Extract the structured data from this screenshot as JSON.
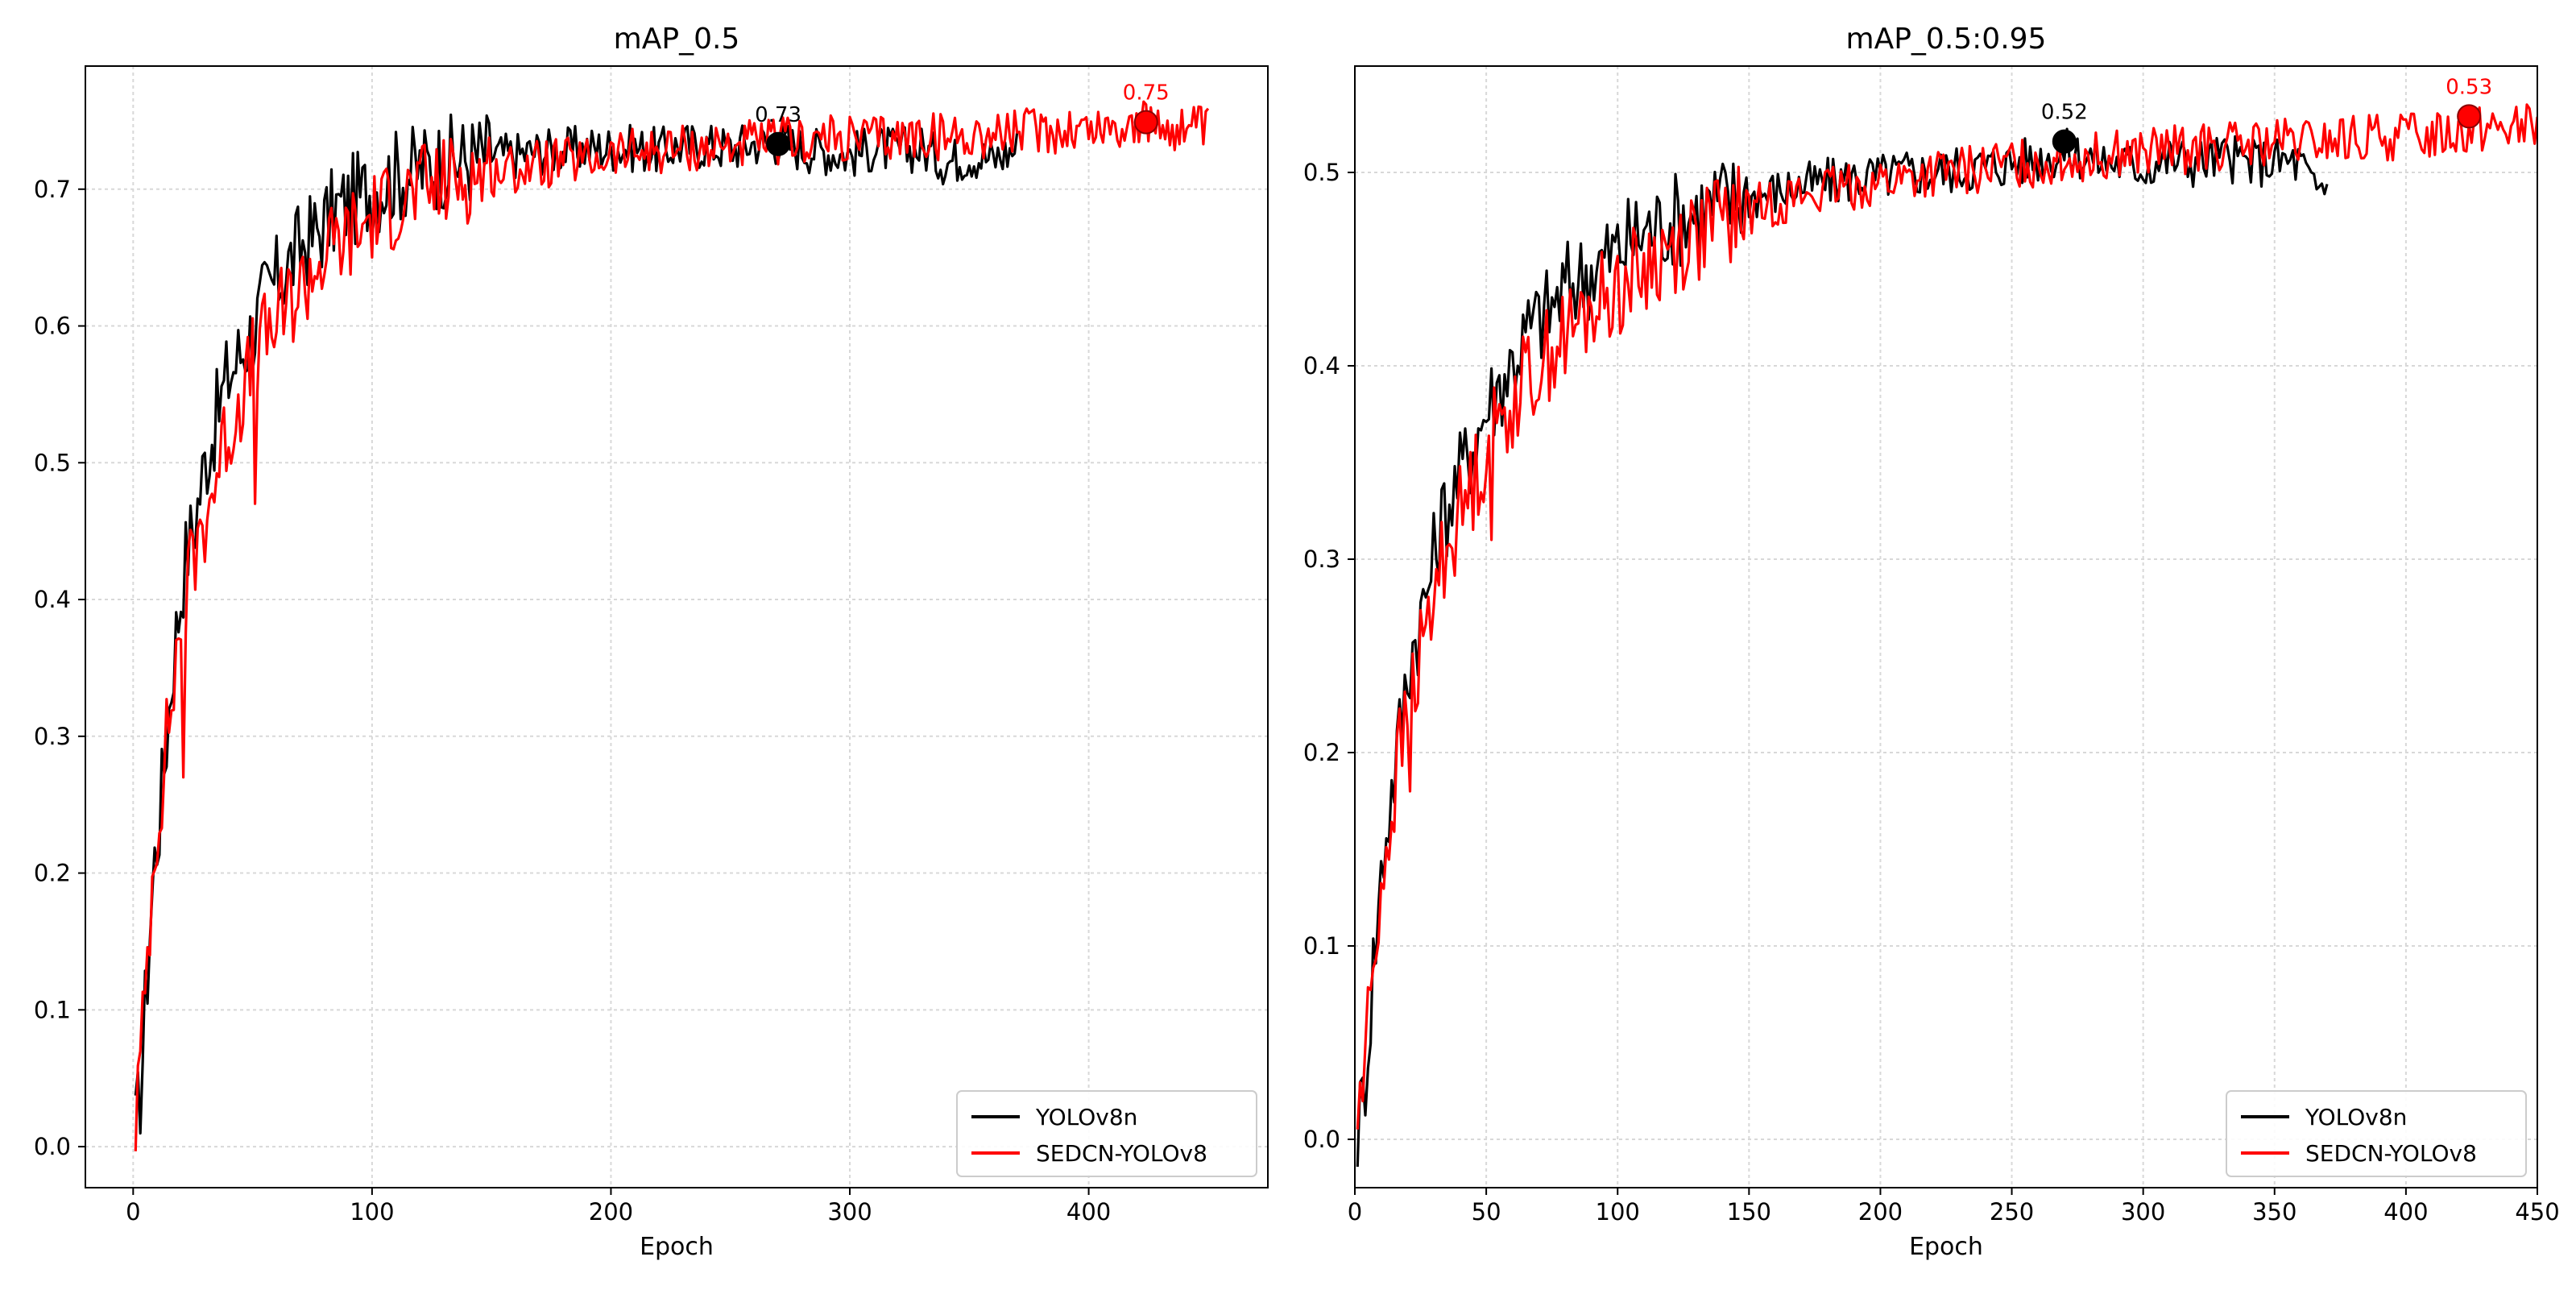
{
  "chart_data": [
    {
      "type": "line",
      "title": "mAP_0.5",
      "xlabel": "Epoch",
      "ylabel": "",
      "xlim": [
        -20,
        475
      ],
      "ylim": [
        -0.03,
        0.79
      ],
      "xticks": [
        0,
        100,
        200,
        300,
        400
      ],
      "yticks": [
        0.0,
        0.1,
        0.2,
        0.3,
        0.4,
        0.5,
        0.6,
        0.7
      ],
      "grid": true,
      "legend_position": "bottom-right",
      "series": [
        {
          "name": "YOLOv8n",
          "color": "#000000",
          "x": [
            1,
            3,
            5,
            7,
            9,
            11,
            13,
            15,
            17,
            19,
            21,
            23,
            25,
            27,
            30,
            33,
            36,
            39,
            42,
            45,
            48,
            51,
            55,
            59,
            63,
            67,
            71,
            75,
            80,
            85,
            90,
            95,
            100,
            105,
            110,
            115,
            120,
            125,
            130,
            140,
            150,
            160,
            170,
            180,
            190,
            200,
            210,
            220,
            230,
            240,
            250,
            260,
            270,
            280,
            290,
            300,
            310,
            320,
            330,
            340,
            350,
            360,
            370
          ],
          "values": [
            0.01,
            0.04,
            0.1,
            0.16,
            0.21,
            0.24,
            0.28,
            0.32,
            0.36,
            0.39,
            0.42,
            0.44,
            0.45,
            0.47,
            0.5,
            0.52,
            0.54,
            0.56,
            0.57,
            0.58,
            0.59,
            0.6,
            0.62,
            0.63,
            0.64,
            0.65,
            0.66,
            0.665,
            0.675,
            0.685,
            0.69,
            0.695,
            0.7,
            0.705,
            0.71,
            0.712,
            0.715,
            0.718,
            0.72,
            0.722,
            0.725,
            0.725,
            0.728,
            0.728,
            0.73,
            0.73,
            0.73,
            0.728,
            0.732,
            0.732,
            0.73,
            0.734,
            0.735,
            0.73,
            0.728,
            0.725,
            0.73,
            0.728,
            0.73,
            0.72,
            0.725,
            0.722,
            0.73
          ],
          "peak": {
            "x": 270,
            "y": 0.733,
            "label": "0.73"
          }
        },
        {
          "name": "SEDCN-YOLOv8",
          "color": "#ff0000",
          "x": [
            1,
            3,
            5,
            7,
            9,
            11,
            13,
            15,
            17,
            19,
            21,
            23,
            25,
            27,
            30,
            33,
            36,
            39,
            42,
            45,
            48,
            51,
            55,
            59,
            63,
            67,
            71,
            75,
            80,
            85,
            90,
            95,
            100,
            105,
            110,
            115,
            120,
            125,
            130,
            140,
            150,
            160,
            170,
            180,
            190,
            200,
            210,
            220,
            230,
            240,
            250,
            260,
            270,
            280,
            290,
            300,
            310,
            320,
            330,
            340,
            350,
            360,
            370,
            380,
            390,
            400,
            410,
            420,
            430,
            440,
            450
          ],
          "values": [
            0.02,
            0.06,
            0.11,
            0.17,
            0.22,
            0.25,
            0.28,
            0.31,
            0.34,
            0.37,
            0.39,
            0.41,
            0.43,
            0.44,
            0.46,
            0.48,
            0.5,
            0.52,
            0.53,
            0.55,
            0.56,
            0.58,
            0.59,
            0.6,
            0.61,
            0.62,
            0.63,
            0.64,
            0.65,
            0.66,
            0.665,
            0.67,
            0.68,
            0.685,
            0.69,
            0.695,
            0.7,
            0.7,
            0.705,
            0.71,
            0.712,
            0.715,
            0.718,
            0.72,
            0.72,
            0.725,
            0.727,
            0.728,
            0.73,
            0.73,
            0.732,
            0.733,
            0.735,
            0.736,
            0.737,
            0.736,
            0.738,
            0.737,
            0.74,
            0.738,
            0.74,
            0.74,
            0.742,
            0.743,
            0.744,
            0.745,
            0.745,
            0.748,
            0.746,
            0.745,
            0.743
          ],
          "peak": {
            "x": 424,
            "y": 0.749,
            "label": "0.75"
          }
        }
      ]
    },
    {
      "type": "line",
      "title": "mAP_0.5:0.95",
      "xlabel": "Epoch",
      "ylabel": "",
      "xlim": [
        0,
        450
      ],
      "ylim": [
        -0.025,
        0.555
      ],
      "xticks": [
        0,
        50,
        100,
        150,
        200,
        250,
        300,
        350,
        400,
        450
      ],
      "yticks": [
        0.0,
        0.1,
        0.2,
        0.3,
        0.4,
        0.5
      ],
      "grid": true,
      "legend_position": "bottom-right",
      "series": [
        {
          "name": "YOLOv8n",
          "color": "#000000",
          "x": [
            1,
            3,
            5,
            7,
            9,
            11,
            13,
            15,
            17,
            19,
            21,
            23,
            25,
            27,
            30,
            33,
            36,
            39,
            42,
            45,
            48,
            51,
            55,
            59,
            63,
            67,
            71,
            75,
            80,
            85,
            90,
            95,
            100,
            105,
            110,
            115,
            120,
            125,
            130,
            140,
            150,
            160,
            170,
            180,
            190,
            200,
            210,
            220,
            230,
            240,
            250,
            260,
            270,
            280,
            290,
            300,
            310,
            320,
            330,
            340,
            350,
            360,
            365,
            370
          ],
          "values": [
            0.005,
            0.02,
            0.05,
            0.09,
            0.12,
            0.15,
            0.17,
            0.19,
            0.21,
            0.23,
            0.25,
            0.26,
            0.27,
            0.28,
            0.3,
            0.32,
            0.33,
            0.34,
            0.35,
            0.36,
            0.37,
            0.38,
            0.39,
            0.4,
            0.41,
            0.42,
            0.425,
            0.43,
            0.44,
            0.445,
            0.45,
            0.455,
            0.46,
            0.465,
            0.47,
            0.472,
            0.475,
            0.478,
            0.48,
            0.485,
            0.488,
            0.49,
            0.493,
            0.495,
            0.497,
            0.498,
            0.5,
            0.5,
            0.502,
            0.503,
            0.505,
            0.507,
            0.51,
            0.508,
            0.505,
            0.503,
            0.507,
            0.505,
            0.508,
            0.505,
            0.506,
            0.505,
            0.49,
            0.494
          ],
          "peak": {
            "x": 270,
            "y": 0.516,
            "label": "0.52"
          }
        },
        {
          "name": "SEDCN-YOLOv8",
          "color": "#ff0000",
          "x": [
            1,
            3,
            5,
            7,
            9,
            11,
            13,
            15,
            17,
            19,
            21,
            23,
            25,
            27,
            30,
            33,
            36,
            39,
            42,
            45,
            48,
            51,
            55,
            59,
            63,
            67,
            71,
            75,
            80,
            85,
            90,
            95,
            100,
            105,
            110,
            115,
            120,
            125,
            130,
            140,
            150,
            160,
            170,
            180,
            190,
            200,
            210,
            220,
            230,
            240,
            250,
            260,
            270,
            280,
            290,
            300,
            310,
            320,
            330,
            340,
            350,
            360,
            370,
            380,
            390,
            400,
            410,
            420,
            430,
            440,
            450
          ],
          "values": [
            0.01,
            0.03,
            0.06,
            0.09,
            0.12,
            0.14,
            0.16,
            0.18,
            0.2,
            0.21,
            0.23,
            0.24,
            0.25,
            0.26,
            0.28,
            0.3,
            0.31,
            0.32,
            0.33,
            0.34,
            0.35,
            0.36,
            0.37,
            0.38,
            0.39,
            0.395,
            0.4,
            0.41,
            0.415,
            0.42,
            0.43,
            0.435,
            0.44,
            0.445,
            0.45,
            0.455,
            0.46,
            0.465,
            0.468,
            0.475,
            0.48,
            0.485,
            0.488,
            0.49,
            0.493,
            0.495,
            0.497,
            0.499,
            0.5,
            0.502,
            0.505,
            0.505,
            0.507,
            0.508,
            0.51,
            0.51,
            0.512,
            0.512,
            0.513,
            0.514,
            0.515,
            0.515,
            0.516,
            0.517,
            0.518,
            0.519,
            0.52,
            0.522,
            0.524,
            0.524,
            0.523
          ],
          "peak": {
            "x": 424,
            "y": 0.529,
            "label": "0.53"
          }
        }
      ]
    }
  ]
}
